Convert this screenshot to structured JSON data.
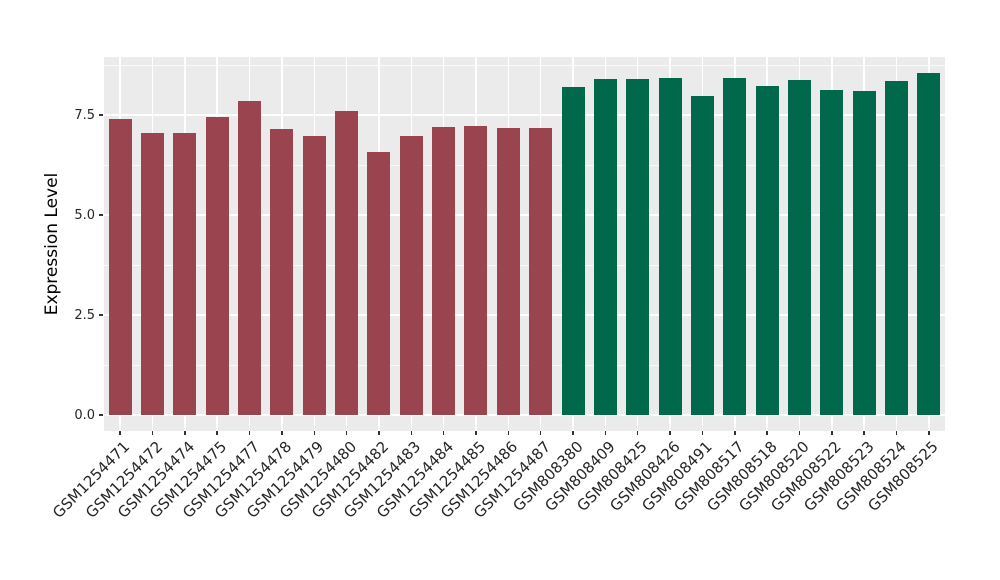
{
  "chart_data": {
    "type": "bar",
    "title": "",
    "xlabel": "",
    "ylabel": "Expression Level",
    "ylim": [
      -0.42,
      8.98
    ],
    "yticks_major": [
      0,
      2.5,
      5,
      7.5
    ],
    "ytick_labels": [
      "0.0",
      "2.5",
      "5.0",
      "7.5"
    ],
    "yticks_minor": [
      1.25,
      3.75,
      6.25,
      8.75
    ],
    "grid": {
      "horizontal": "major+minor",
      "vertical": "major-at-category-centers",
      "visible": true
    },
    "legend_position": "none",
    "bars": [
      {
        "label": "GSM1254471",
        "value": 7.4,
        "group": "group1"
      },
      {
        "label": "GSM1254472",
        "value": 7.06,
        "group": "group1"
      },
      {
        "label": "GSM1254474",
        "value": 7.06,
        "group": "group1"
      },
      {
        "label": "GSM1254475",
        "value": 7.46,
        "group": "group1"
      },
      {
        "label": "GSM1254477",
        "value": 7.84,
        "group": "group1"
      },
      {
        "label": "GSM1254478",
        "value": 7.16,
        "group": "group1"
      },
      {
        "label": "GSM1254479",
        "value": 6.97,
        "group": "group1"
      },
      {
        "label": "GSM1254480",
        "value": 7.61,
        "group": "group1"
      },
      {
        "label": "GSM1254482",
        "value": 6.58,
        "group": "group1"
      },
      {
        "label": "GSM1254483",
        "value": 6.98,
        "group": "group1"
      },
      {
        "label": "GSM1254484",
        "value": 7.21,
        "group": "group1"
      },
      {
        "label": "GSM1254485",
        "value": 7.23,
        "group": "group1"
      },
      {
        "label": "GSM1254486",
        "value": 7.18,
        "group": "group1"
      },
      {
        "label": "GSM1254487",
        "value": 7.18,
        "group": "group1"
      },
      {
        "label": "GSM808380",
        "value": 8.2,
        "group": "group2"
      },
      {
        "label": "GSM808409",
        "value": 8.4,
        "group": "group2"
      },
      {
        "label": "GSM808425",
        "value": 8.41,
        "group": "group2"
      },
      {
        "label": "GSM808426",
        "value": 8.43,
        "group": "group2"
      },
      {
        "label": "GSM808491",
        "value": 7.98,
        "group": "group2"
      },
      {
        "label": "GSM808517",
        "value": 8.42,
        "group": "group2"
      },
      {
        "label": "GSM808518",
        "value": 8.23,
        "group": "group2"
      },
      {
        "label": "GSM808520",
        "value": 8.38,
        "group": "group2"
      },
      {
        "label": "GSM808522",
        "value": 8.13,
        "group": "group2"
      },
      {
        "label": "GSM808523",
        "value": 8.11,
        "group": "group2"
      },
      {
        "label": "GSM808524",
        "value": 8.36,
        "group": "group2"
      },
      {
        "label": "GSM808525",
        "value": 8.54,
        "group": "group2"
      }
    ],
    "groups": {
      "group1": {
        "color": "#9A4450"
      },
      "group2": {
        "color": "#00694B"
      }
    }
  },
  "colors": {
    "panel_background": "#EBEBEB",
    "gridline": "#FFFFFF",
    "tick_mark": "#333333",
    "axis_text": "#262626"
  }
}
